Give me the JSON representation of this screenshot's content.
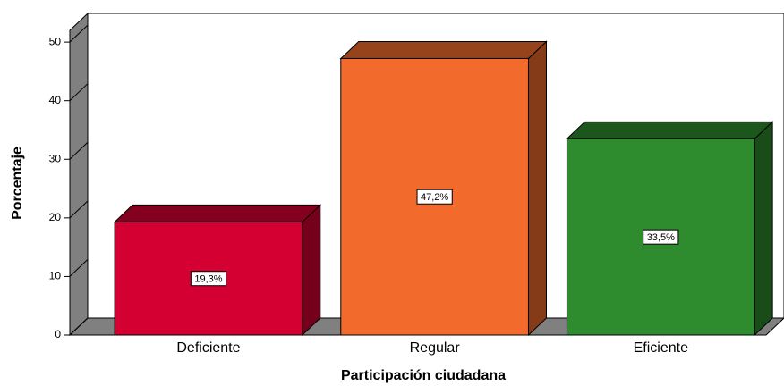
{
  "chart_data": {
    "type": "bar3d",
    "x_label": "Participación ciudadana",
    "y_label": "Porcentaje",
    "categories": [
      "Deficiente",
      "Regular",
      "Eficiente"
    ],
    "values": [
      19.3,
      47.2,
      33.5
    ],
    "value_labels": [
      "19,3%",
      "47,2%",
      "33,5%"
    ],
    "colors": [
      "#d50032",
      "#f26a2c",
      "#2e8b2e"
    ],
    "ylim": [
      0,
      52
    ],
    "yticks": [
      0,
      10,
      20,
      30,
      40,
      50
    ]
  }
}
